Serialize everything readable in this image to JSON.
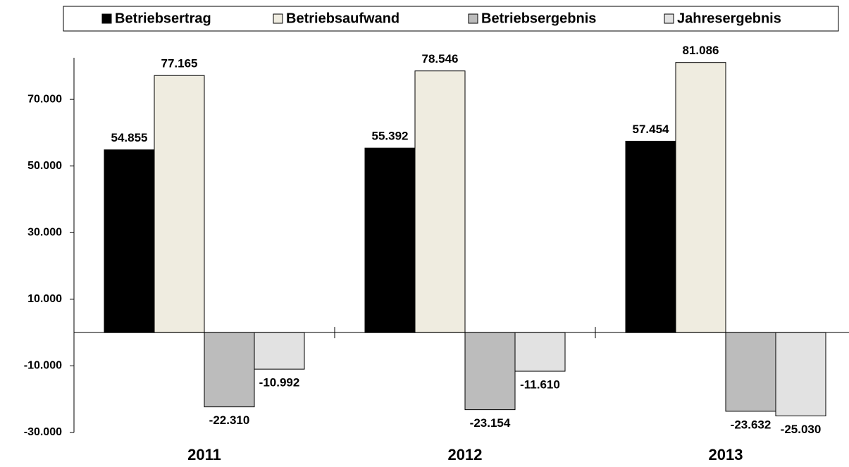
{
  "chart_data": {
    "type": "bar",
    "categories": [
      "2011",
      "2012",
      "2013"
    ],
    "series": [
      {
        "name": "Betriebsertrag",
        "color": "#000000",
        "values": [
          54855,
          55392,
          57454
        ],
        "value_labels": [
          "54.855",
          "55.392",
          "57.454"
        ]
      },
      {
        "name": "Betriebsaufwand",
        "color": "#efece0",
        "values": [
          77165,
          78546,
          81086
        ],
        "value_labels": [
          "77.165",
          "78.546",
          "81.086"
        ]
      },
      {
        "name": "Betriebsergebnis",
        "color": "#bcbcbc",
        "values": [
          -22310,
          -23154,
          -23632
        ],
        "value_labels": [
          "-22.310",
          "-23.154",
          "-23.632"
        ]
      },
      {
        "name": "Jahresergebnis",
        "color": "#e2e2e2",
        "values": [
          -10992,
          -11610,
          -25030
        ],
        "value_labels": [
          "-10.992",
          "-11.610",
          "-25.030"
        ]
      }
    ],
    "ylim": [
      -30000,
      82500
    ],
    "yticks": [
      {
        "value": -30000,
        "label": "-30.000"
      },
      {
        "value": -10000,
        "label": "-10.000"
      },
      {
        "value": 10000,
        "label": "10.000"
      },
      {
        "value": 30000,
        "label": "30.000"
      },
      {
        "value": 50000,
        "label": "50.000"
      },
      {
        "value": 70000,
        "label": "70.000"
      }
    ],
    "legend": "top"
  }
}
